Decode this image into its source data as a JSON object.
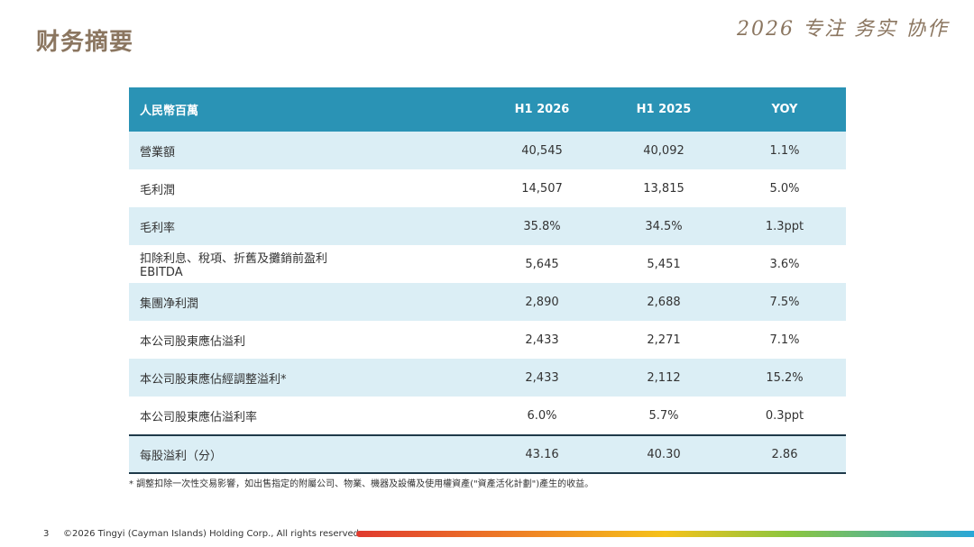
{
  "header": {
    "title": "财务摘要",
    "slogan": "2026 专注 务实 协作"
  },
  "table": {
    "columns": [
      "人民幣百萬",
      "H1 2026",
      "H1 2025",
      "YOY"
    ],
    "rows": [
      [
        "營業額",
        "40,545",
        "40,092",
        "1.1%"
      ],
      [
        "毛利潤",
        "14,507",
        "13,815",
        "5.0%"
      ],
      [
        "毛利率",
        "35.8%",
        "34.5%",
        "1.3ppt"
      ],
      [
        [
          "扣除利息、稅項、折舊及攤銷前盈利",
          "EBITDA"
        ],
        "5,645",
        "5,451",
        "3.6%"
      ],
      [
        "集團净利潤",
        "2,890",
        "2,688",
        "7.5%"
      ],
      [
        "本公司股東應佔溢利",
        "2,433",
        "2,271",
        "7.1%"
      ],
      [
        "本公司股東應佔經調整溢利*",
        "2,433",
        "2,112",
        "15.2%"
      ],
      [
        "本公司股東應佔溢利率",
        "6.0%",
        "5.7%",
        "0.3ppt"
      ],
      [
        "每股溢利（分）",
        "43.16",
        "40.30",
        "2.86"
      ]
    ],
    "footnote": "* 調整扣除一次性交易影響，如出售指定的附屬公司、物業、機器及設備及使用權資產(\"資產活化計劃\")產生的收益。"
  },
  "footer": {
    "page": "3",
    "copyright": "©2026 Tingyi (Cayman Islands) Holding Corp., All rights reserved."
  }
}
